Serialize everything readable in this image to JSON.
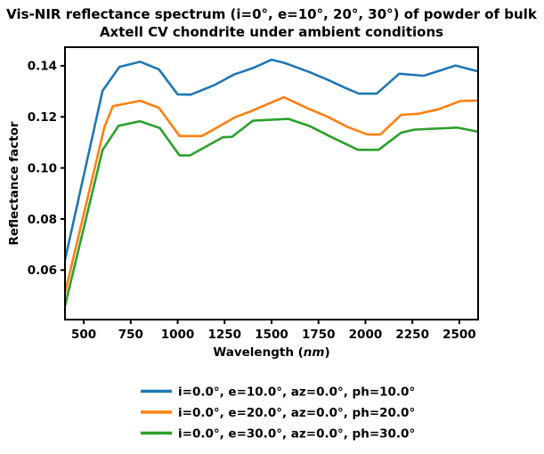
{
  "title": {
    "line1": "Vis-NIR reflectance spectrum (i=0°, e=10°, 20°, 30°) of powder of bulk",
    "line2": "Axtell CV chondrite under ambient conditions"
  },
  "xlabel_parts": {
    "pre": "Wavelength (",
    "italic": "nm",
    "post": ")"
  },
  "chart_data": {
    "type": "line",
    "title": "Vis-NIR reflectance spectrum (i=0°, e=10°, 20°, 30°) of powder of bulk Axtell CV chondrite under ambient conditions",
    "xlabel": "Wavelength (nm)",
    "ylabel": "Reflectance factor",
    "xlim": [
      400,
      2600
    ],
    "ylim": [
      0.0406,
      0.1473
    ],
    "xticks": [
      500,
      750,
      1000,
      1250,
      1500,
      1750,
      2000,
      2250,
      2500
    ],
    "yticks": [
      0.06,
      0.08,
      0.1,
      0.12,
      0.14
    ],
    "grid": false,
    "legend_position": "below-center",
    "spine_color": "#000000",
    "background": "#ffffff",
    "series": [
      {
        "name": "i=0.0°, e=10.0°, az=0.0°, ph=10.0°",
        "color": "#1f77b4",
        "x": [
          400,
          600,
          690,
          800,
          900,
          1000,
          1070,
          1100,
          1200,
          1300,
          1400,
          1500,
          1570,
          1700,
          1800,
          1900,
          1965,
          2060,
          2180,
          2230,
          2310,
          2480,
          2600
        ],
        "y": [
          0.064,
          0.1302,
          0.1396,
          0.1416,
          0.1386,
          0.1288,
          0.1287,
          0.1296,
          0.1326,
          0.1366,
          0.1391,
          0.1424,
          0.1411,
          0.1376,
          0.1345,
          0.1311,
          0.1291,
          0.1291,
          0.1369,
          0.1366,
          0.1361,
          0.1401,
          0.1378
        ]
      },
      {
        "name": "i=0.0°, e=20.0°, az=0.0°, ph=20.0°",
        "color": "#ff7f0e",
        "x": [
          400,
          610,
          655,
          800,
          900,
          1010,
          1130,
          1310,
          1390,
          1565,
          1700,
          1800,
          1900,
          2010,
          2080,
          2190,
          2280,
          2390,
          2505,
          2600
        ],
        "y": [
          0.051,
          0.116,
          0.1242,
          0.1263,
          0.1236,
          0.1125,
          0.1125,
          0.12,
          0.1222,
          0.1277,
          0.1231,
          0.12,
          0.1162,
          0.1131,
          0.1131,
          0.1208,
          0.1212,
          0.123,
          0.1262,
          0.1264
        ]
      },
      {
        "name": "i=0.0°, e=30.0°, az=0.0°, ph=30.0°",
        "color": "#2ca02c",
        "x": [
          400,
          600,
          685,
          800,
          905,
          1010,
          1065,
          1240,
          1290,
          1400,
          1590,
          1700,
          1810,
          1960,
          2070,
          2190,
          2260,
          2490,
          2600
        ],
        "y": [
          0.046,
          0.107,
          0.1165,
          0.1183,
          0.1156,
          0.1049,
          0.1049,
          0.112,
          0.1122,
          0.1185,
          0.1192,
          0.1165,
          0.1124,
          0.1071,
          0.1071,
          0.1138,
          0.115,
          0.1158,
          0.1142
        ]
      }
    ]
  }
}
